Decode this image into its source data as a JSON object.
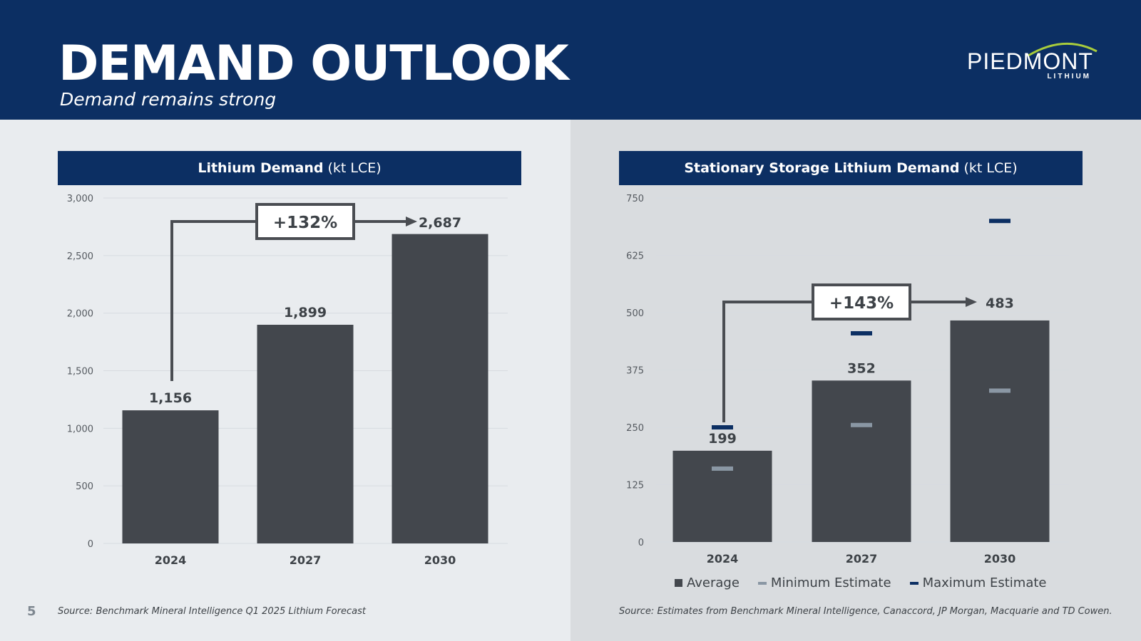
{
  "header": {
    "title": "DEMAND OUTLOOK",
    "subtitle": "Demand remains strong",
    "logo_word": "PIEDMONT",
    "logo_sub": "LITHIUM"
  },
  "colors": {
    "navy": "#0c2f63",
    "bar": "#43474d",
    "min_marker": "#8a97a4",
    "max_marker": "#0c2f63",
    "callout": "#4a4d52",
    "grid": "#d7dbe0",
    "logo_arc": "#a8cc3c"
  },
  "page_number": "5",
  "chart_data": [
    {
      "type": "bar",
      "title_bold": "Lithium Demand",
      "title_unit": "(kt LCE)",
      "categories": [
        "2024",
        "2027",
        "2030"
      ],
      "values": [
        1156,
        1899,
        2687
      ],
      "value_labels": [
        "1,156",
        "1,899",
        "2,687"
      ],
      "ylim": [
        0,
        3000
      ],
      "yticks": [
        0,
        500,
        1000,
        1500,
        2000,
        2500,
        3000
      ],
      "ytick_labels": [
        "0",
        "500",
        "1,000",
        "1,500",
        "2,000",
        "2,500",
        "3,000"
      ],
      "grid": true,
      "callout": {
        "label": "+132%",
        "from": "2024",
        "to": "2030"
      },
      "source": "Source: Benchmark Mineral Intelligence Q1 2025 Lithium Forecast"
    },
    {
      "type": "bar",
      "title_bold": "Stationary Storage Lithium Demand",
      "title_unit": "(kt LCE)",
      "categories": [
        "2024",
        "2027",
        "2030"
      ],
      "series": [
        {
          "name": "Average",
          "values": [
            199,
            352,
            483
          ]
        },
        {
          "name": "Minimum Estimate",
          "values": [
            160,
            255,
            330
          ]
        },
        {
          "name": "Maximum Estimate",
          "values": [
            250,
            455,
            700
          ]
        }
      ],
      "value_labels": [
        "199",
        "352",
        "483"
      ],
      "ylim": [
        0,
        750
      ],
      "yticks": [
        0,
        125,
        250,
        375,
        500,
        625,
        750
      ],
      "ytick_labels": [
        "0",
        "125",
        "250",
        "375",
        "500",
        "625",
        "750"
      ],
      "grid": true,
      "callout": {
        "label": "+143%",
        "from": "2024",
        "to": "2030"
      },
      "legend": [
        "Average",
        "Minimum Estimate",
        "Maximum Estimate"
      ],
      "source": "Source: Estimates from Benchmark Mineral Intelligence, Canaccord, JP Morgan, Macquarie and TD Cowen."
    }
  ]
}
